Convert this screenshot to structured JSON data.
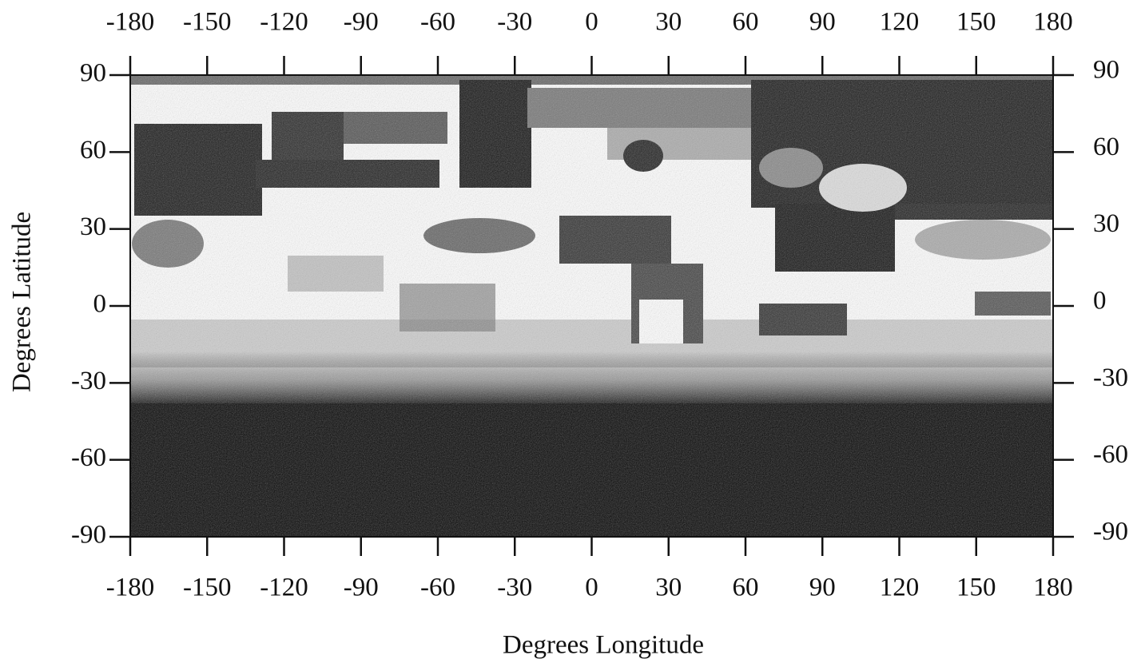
{
  "chart_data": {
    "type": "map",
    "xlabel": "Degrees Longitude",
    "ylabel": "Degrees Latitude",
    "xlim": [
      -180,
      180
    ],
    "ylim": [
      -90,
      90
    ],
    "xticks": [
      -180,
      -150,
      -120,
      -90,
      -60,
      -30,
      0,
      30,
      60,
      90,
      120,
      150,
      180
    ],
    "yticks": [
      -90,
      -60,
      -30,
      0,
      30,
      60,
      90
    ]
  }
}
